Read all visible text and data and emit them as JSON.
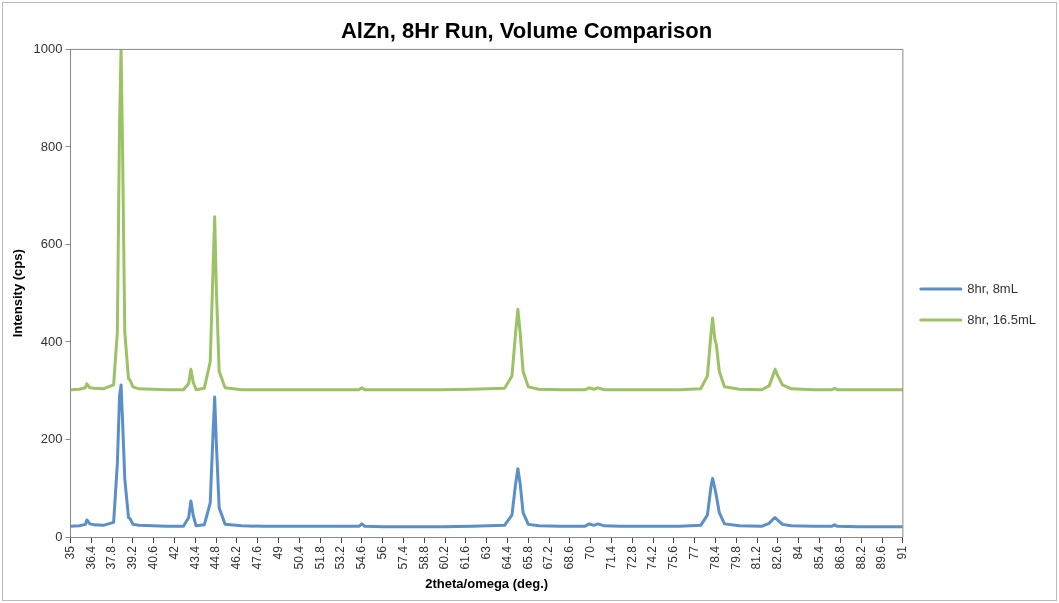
{
  "chart_data": {
    "type": "line",
    "title": "AlZn, 8Hr Run, Volume Comparison",
    "xlabel": "2theta/omega (deg.)",
    "ylabel": "Intensity (cps)",
    "x": [
      35,
      35.6,
      36.0,
      36.1,
      36.3,
      36.6,
      37.2,
      37.9,
      38.15,
      38.3,
      38.4,
      38.5,
      38.65,
      38.9,
      39.0,
      39.2,
      39.6,
      40.5,
      41.5,
      42.6,
      42.95,
      43.1,
      43.25,
      43.45,
      44.0,
      44.4,
      44.6,
      44.7,
      44.8,
      45.0,
      45.4,
      46.5,
      48,
      50,
      52,
      54.4,
      54.6,
      54.8,
      56,
      58,
      60,
      62,
      64.2,
      64.7,
      64.95,
      65.1,
      65.25,
      65.45,
      65.8,
      66.5,
      68,
      69.6,
      69.9,
      70.2,
      70.5,
      70.9,
      72,
      74,
      76,
      77.4,
      77.85,
      78.1,
      78.2,
      78.35,
      78.45,
      78.65,
      79.0,
      80,
      81.5,
      82.0,
      82.25,
      82.4,
      82.6,
      82.9,
      83.5,
      85,
      86.2,
      86.4,
      86.6,
      88,
      90,
      91
    ],
    "series": [
      {
        "name": "8hr, 8mL",
        "color": "#5b8fc9",
        "values": [
          22,
          23,
          26,
          35,
          27,
          25,
          24,
          30,
          150,
          290,
          312,
          240,
          120,
          40,
          38,
          26,
          24,
          23,
          22,
          22,
          40,
          74,
          45,
          23,
          25,
          70,
          220,
          287,
          200,
          60,
          26,
          23,
          22,
          22,
          22,
          22,
          27,
          22,
          21,
          21,
          21,
          22,
          24,
          45,
          110,
          140,
          110,
          50,
          26,
          23,
          22,
          22,
          27,
          24,
          27,
          23,
          22,
          22,
          22,
          24,
          45,
          105,
          120,
          100,
          85,
          50,
          27,
          23,
          22,
          28,
          36,
          40,
          34,
          26,
          23,
          22,
          22,
          25,
          22,
          21,
          21,
          21
        ]
      },
      {
        "name": "8hr, 16.5mL",
        "color": "#9bc264",
        "values": [
          302,
          303,
          306,
          314,
          306,
          305,
          304,
          312,
          420,
          850,
          1000,
          800,
          420,
          325,
          322,
          308,
          304,
          303,
          302,
          302,
          315,
          344,
          318,
          302,
          305,
          360,
          560,
          657,
          520,
          340,
          306,
          302,
          302,
          302,
          302,
          302,
          306,
          302,
          302,
          302,
          302,
          303,
          305,
          330,
          420,
          467,
          420,
          340,
          308,
          303,
          302,
          302,
          306,
          303,
          306,
          302,
          302,
          302,
          302,
          304,
          330,
          420,
          449,
          405,
          395,
          340,
          308,
          303,
          302,
          310,
          330,
          344,
          330,
          312,
          304,
          302,
          302,
          305,
          302,
          302,
          302,
          302
        ]
      }
    ],
    "xlim": [
      35,
      91
    ],
    "xticks": [
      35,
      36.4,
      37.8,
      39.2,
      40.6,
      42,
      43.4,
      44.8,
      46.2,
      47.6,
      49,
      50.4,
      51.8,
      53.2,
      54.6,
      56,
      57.4,
      58.8,
      60.2,
      61.6,
      63,
      64.4,
      65.8,
      67.2,
      68.6,
      70,
      71.4,
      72.8,
      74.2,
      75.6,
      77,
      78.4,
      79.8,
      81.2,
      82.6,
      84,
      85.4,
      86.8,
      88.2,
      89.6,
      91
    ],
    "ylim": [
      0,
      1000
    ],
    "yticks": [
      0,
      200,
      400,
      600,
      800,
      1000
    ],
    "grid": false,
    "legend": "right",
    "marker": "none",
    "line_style": "solid"
  }
}
